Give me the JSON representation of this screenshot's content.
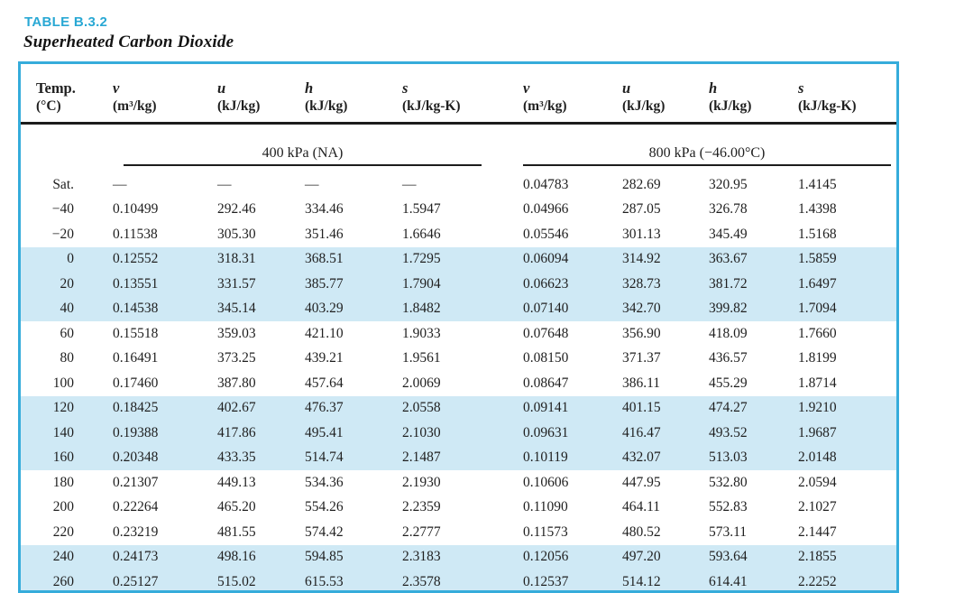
{
  "title": "TABLE B.3.2",
  "subtitle": "Superheated Carbon Dioxide",
  "colors": {
    "accent_cyan": "#35acdb",
    "title_cyan": "#29a8d4",
    "band_blue": "#cfe9f5",
    "rule_black": "#1c1c1c"
  },
  "table": {
    "temp_header": {
      "line1": "Temp.",
      "line2": "(°C)"
    },
    "columns": [
      {
        "symbol": "v",
        "unit": "(m³/kg)"
      },
      {
        "symbol": "u",
        "unit": "(kJ/kg)"
      },
      {
        "symbol": "h",
        "unit": "(kJ/kg)"
      },
      {
        "symbol": "s",
        "unit": "(kJ/kg-K)"
      }
    ],
    "sections": [
      "400 kPa (NA)",
      "800 kPa (−46.00°C)"
    ],
    "rows": [
      {
        "temp": "Sat.",
        "values": [
          "—",
          "—",
          "—",
          "—",
          "0.04783",
          "282.69",
          "320.95",
          "1.4145"
        ],
        "shaded": false
      },
      {
        "temp": "−40",
        "values": [
          "0.10499",
          "292.46",
          "334.46",
          "1.5947",
          "0.04966",
          "287.05",
          "326.78",
          "1.4398"
        ],
        "shaded": false
      },
      {
        "temp": "−20",
        "values": [
          "0.11538",
          "305.30",
          "351.46",
          "1.6646",
          "0.05546",
          "301.13",
          "345.49",
          "1.5168"
        ],
        "shaded": false
      },
      {
        "temp": "0",
        "values": [
          "0.12552",
          "318.31",
          "368.51",
          "1.7295",
          "0.06094",
          "314.92",
          "363.67",
          "1.5859"
        ],
        "shaded": true
      },
      {
        "temp": "20",
        "values": [
          "0.13551",
          "331.57",
          "385.77",
          "1.7904",
          "0.06623",
          "328.73",
          "381.72",
          "1.6497"
        ],
        "shaded": true
      },
      {
        "temp": "40",
        "values": [
          "0.14538",
          "345.14",
          "403.29",
          "1.8482",
          "0.07140",
          "342.70",
          "399.82",
          "1.7094"
        ],
        "shaded": true
      },
      {
        "temp": "60",
        "values": [
          "0.15518",
          "359.03",
          "421.10",
          "1.9033",
          "0.07648",
          "356.90",
          "418.09",
          "1.7660"
        ],
        "shaded": false
      },
      {
        "temp": "80",
        "values": [
          "0.16491",
          "373.25",
          "439.21",
          "1.9561",
          "0.08150",
          "371.37",
          "436.57",
          "1.8199"
        ],
        "shaded": false
      },
      {
        "temp": "100",
        "values": [
          "0.17460",
          "387.80",
          "457.64",
          "2.0069",
          "0.08647",
          "386.11",
          "455.29",
          "1.8714"
        ],
        "shaded": false
      },
      {
        "temp": "120",
        "values": [
          "0.18425",
          "402.67",
          "476.37",
          "2.0558",
          "0.09141",
          "401.15",
          "474.27",
          "1.9210"
        ],
        "shaded": true
      },
      {
        "temp": "140",
        "values": [
          "0.19388",
          "417.86",
          "495.41",
          "2.1030",
          "0.09631",
          "416.47",
          "493.52",
          "1.9687"
        ],
        "shaded": true
      },
      {
        "temp": "160",
        "values": [
          "0.20348",
          "433.35",
          "514.74",
          "2.1487",
          "0.10119",
          "432.07",
          "513.03",
          "2.0148"
        ],
        "shaded": true
      },
      {
        "temp": "180",
        "values": [
          "0.21307",
          "449.13",
          "534.36",
          "2.1930",
          "0.10606",
          "447.95",
          "532.80",
          "2.0594"
        ],
        "shaded": false
      },
      {
        "temp": "200",
        "values": [
          "0.22264",
          "465.20",
          "554.26",
          "2.2359",
          "0.11090",
          "464.11",
          "552.83",
          "2.1027"
        ],
        "shaded": false
      },
      {
        "temp": "220",
        "values": [
          "0.23219",
          "481.55",
          "574.42",
          "2.2777",
          "0.11573",
          "480.52",
          "573.11",
          "2.1447"
        ],
        "shaded": false
      },
      {
        "temp": "240",
        "values": [
          "0.24173",
          "498.16",
          "594.85",
          "2.3183",
          "0.12056",
          "497.20",
          "593.64",
          "2.1855"
        ],
        "shaded": true
      },
      {
        "temp": "260",
        "values": [
          "0.25127",
          "515.02",
          "615.53",
          "2.3578",
          "0.12537",
          "514.12",
          "614.41",
          "2.2252"
        ],
        "shaded": true
      }
    ]
  }
}
